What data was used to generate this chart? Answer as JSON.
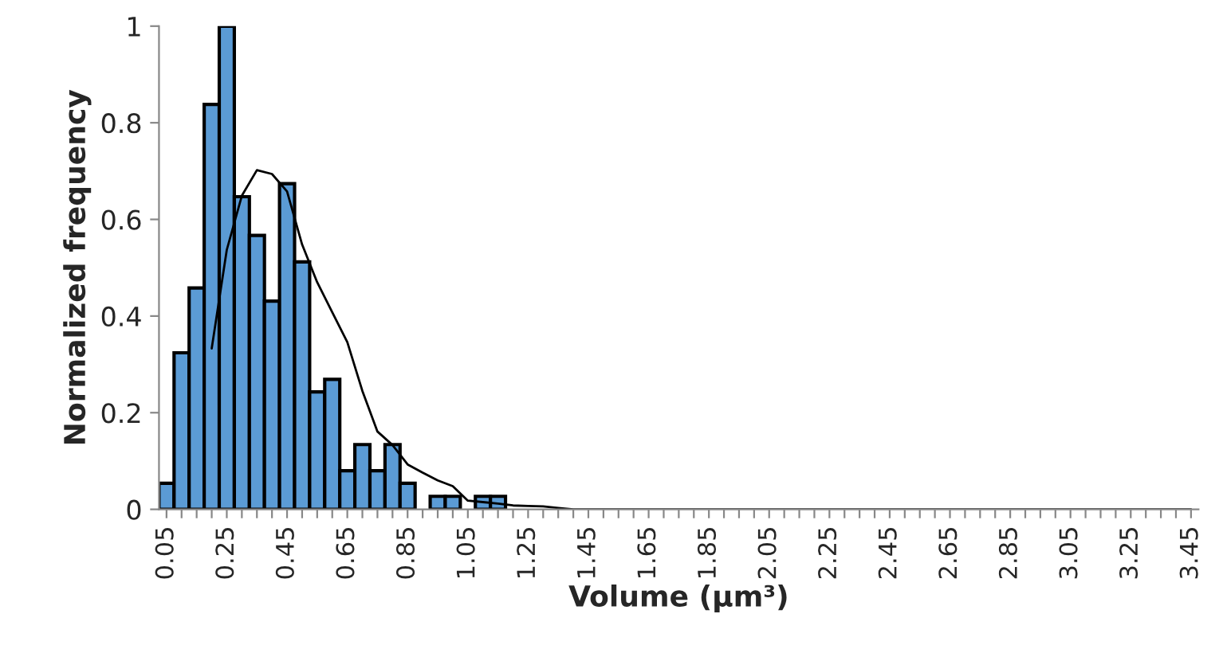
{
  "chart_data": {
    "type": "bar",
    "xlabel": "Volume (µm³)",
    "ylabel": "Normalized frequency",
    "categories": [
      "0.05",
      null,
      null,
      null,
      "0.25",
      null,
      null,
      null,
      "0.45",
      null,
      null,
      null,
      "0.65",
      null,
      null,
      null,
      "0.85",
      null,
      null,
      null,
      "1.05",
      null,
      null,
      null,
      "1.25",
      null,
      null,
      null,
      "1.45",
      null,
      null,
      null,
      "1.65",
      null,
      null,
      null,
      "1.85",
      null,
      null,
      null,
      "2.05",
      null,
      null,
      null,
      "2.25",
      null,
      null,
      null,
      "2.45",
      null,
      null,
      null,
      "2.65",
      null,
      null,
      null,
      "2.85",
      null,
      null,
      null,
      "3.05",
      null,
      null,
      null,
      "3.25",
      null,
      null,
      null,
      "3.45"
    ],
    "series": [
      {
        "color": "#5b9bd5",
        "values": [
          0.054,
          0.324,
          0.458,
          0.838,
          1.0,
          0.647,
          0.567,
          0.431,
          0.674,
          0.512,
          0.243,
          0.269,
          0.08,
          0.134,
          0.08,
          0.134,
          0.054,
          0,
          0.027,
          0.027,
          0,
          0.027,
          0.027,
          0,
          0,
          0,
          0,
          0,
          0,
          0,
          0,
          0,
          0,
          0,
          0,
          0,
          0,
          0,
          0,
          0,
          0,
          0,
          0,
          0,
          0,
          0,
          0,
          0,
          0,
          0,
          0,
          0,
          0,
          0,
          0,
          0,
          0,
          0,
          0,
          0,
          0,
          0,
          0,
          0,
          0,
          0,
          0,
          0,
          0
        ]
      },
      {
        "type": "line",
        "color": "#000000",
        "values": [
          null,
          null,
          null,
          0.333,
          0.537,
          0.649,
          0.702,
          0.694,
          0.658,
          0.548,
          0.47,
          0.408,
          0.346,
          0.245,
          0.161,
          0.133,
          0.093,
          0.076,
          0.06,
          0.048,
          0.018,
          0.015,
          0.012,
          0.008,
          0.007,
          0.006,
          0.003,
          0,
          0,
          0,
          0,
          0,
          0,
          0,
          0,
          0,
          0,
          0,
          0,
          0,
          0,
          0,
          0,
          0,
          0,
          0,
          0,
          0,
          0,
          0,
          0,
          0,
          0,
          0,
          0,
          0,
          0,
          0,
          0,
          0,
          0,
          0,
          0,
          0,
          0,
          0,
          0,
          0,
          0
        ]
      }
    ],
    "ylim": [
      0,
      1
    ],
    "yticks": [
      0,
      0.2,
      0.4,
      0.6,
      0.8,
      1
    ],
    "grid": false,
    "legend": false
  }
}
